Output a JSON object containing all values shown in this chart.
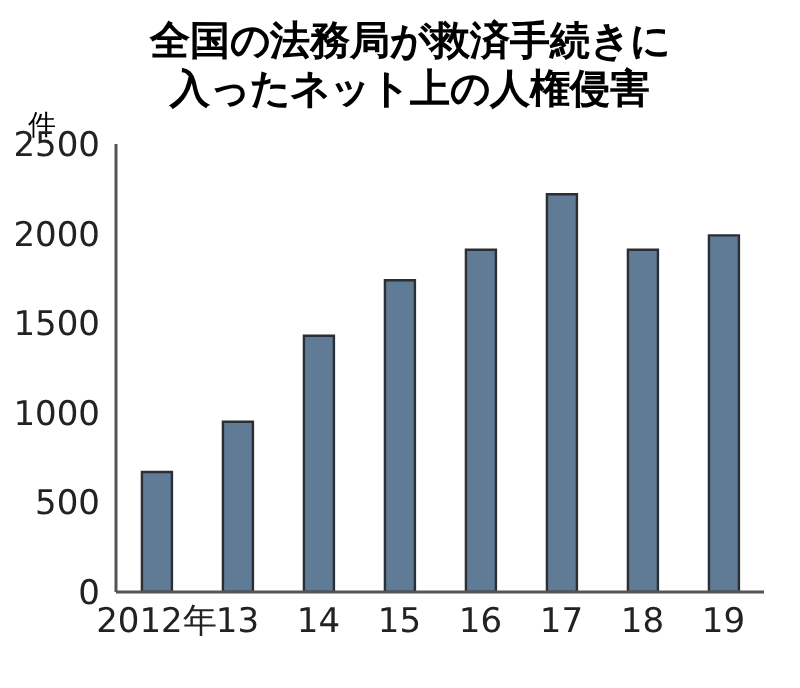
{
  "chart_data": {
    "type": "bar",
    "title": "全国の法務局が救済手続きに入ったネット上の人権侵害",
    "ylabel": "件",
    "categories": [
      "2012年",
      "13",
      "14",
      "15",
      "16",
      "17",
      "18",
      "19"
    ],
    "values": [
      670,
      950,
      1430,
      1740,
      1910,
      2220,
      1910,
      1990
    ],
    "color": "#5f7b95",
    "ylim": [
      0,
      2500
    ],
    "yticks": [
      0,
      500,
      1000,
      1500,
      2000,
      2500
    ],
    "grid": false
  }
}
